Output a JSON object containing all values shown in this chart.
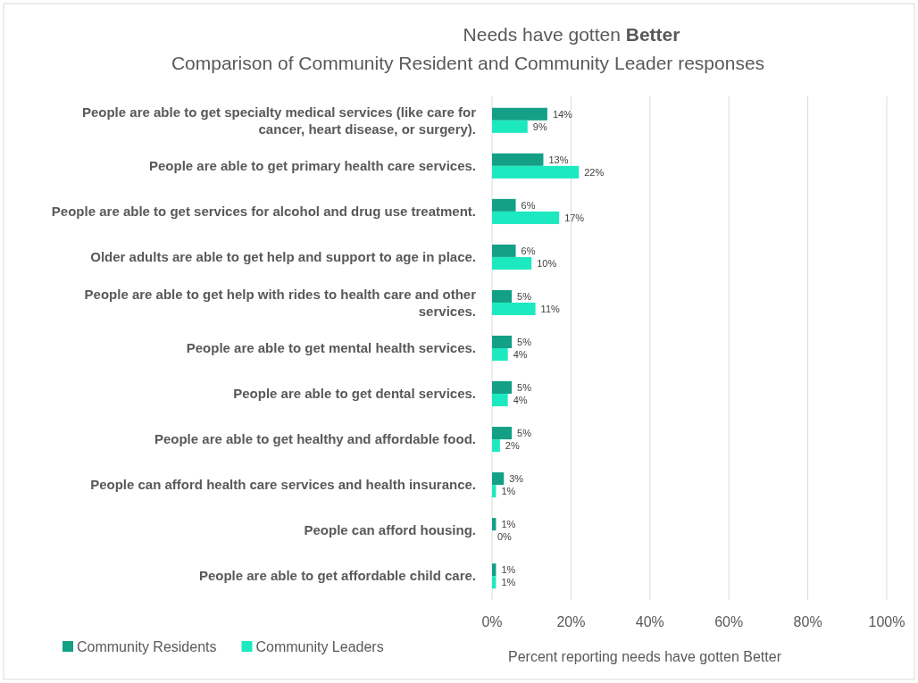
{
  "chart_data": {
    "type": "bar",
    "orientation": "horizontal",
    "title": "Needs have gotten Better",
    "subtitle": "Comparison of Community Resident and Community Leader responses",
    "xlabel": "Percent reporting needs have gotten Better",
    "categories": [
      "People are able to get specialty medical services (like care for cancer, heart disease, or surgery).",
      "People are able to get primary health care services.",
      "People are able to get services for alcohol and drug use treatment.",
      "Older adults are able to get help and support to age in place.",
      "People are able to get help with rides to health care and other services.",
      "People are able to get mental health services.",
      "People are able to get dental services.",
      "People are able to get healthy and affordable food.",
      "People can afford health care services and health insurance.",
      "People can afford housing.",
      "People are able to get affordable child care."
    ],
    "series": [
      {
        "name": "Community Residents",
        "color": "#13a086",
        "values": [
          14,
          13,
          6,
          6,
          5,
          5,
          5,
          5,
          3,
          1,
          1
        ],
        "value_labels": [
          "14%",
          "13%",
          "6%",
          "6%",
          "5%",
          "5%",
          "5%",
          "5%",
          "3%",
          "1%",
          "1%"
        ]
      },
      {
        "name": "Community Leaders",
        "color": "#1de9c1",
        "values": [
          9,
          22,
          17,
          10,
          11,
          4,
          4,
          2,
          1,
          0,
          1
        ],
        "value_labels": [
          "9%",
          "22%",
          "17%",
          "10%",
          "11%",
          "4%",
          "4%",
          "2%",
          "1%",
          "0%",
          "1%"
        ]
      }
    ],
    "xlim": [
      0,
      100
    ],
    "xticks": [
      {
        "value": 0,
        "label": "0%"
      },
      {
        "value": 20,
        "label": "20%"
      },
      {
        "value": 40,
        "label": "40%"
      },
      {
        "value": 60,
        "label": "60%"
      },
      {
        "value": 80,
        "label": "80%"
      },
      {
        "value": 100,
        "label": "100%"
      }
    ],
    "grid": "x",
    "legend": "bottom left"
  }
}
